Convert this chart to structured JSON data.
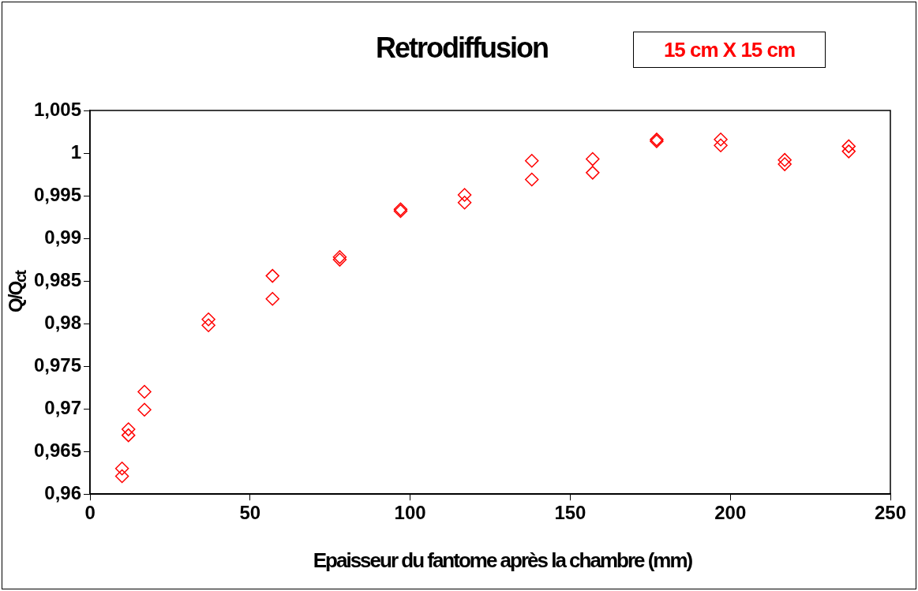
{
  "chart_data": {
    "type": "scatter",
    "title": "Retrodiffusion",
    "xlabel": "Epaisseur du fantome après la chambre (mm)",
    "ylabel": "Q/Q$_{ct}$",
    "annotations": [
      "15 cm X 15 cm"
    ],
    "x": [
      10,
      10,
      12,
      12,
      17,
      17,
      37,
      37,
      57,
      57,
      78,
      78,
      97,
      97,
      117,
      117,
      138,
      138,
      157,
      157,
      177,
      177,
      197,
      197,
      217,
      217,
      237,
      237
    ],
    "series": [
      {
        "color": "#ff0000",
        "values": [
          0.963,
          0.9621,
          0.9676,
          0.9669,
          0.972,
          0.9699,
          0.9805,
          0.9798,
          0.9856,
          0.9829,
          0.9878,
          0.9875,
          0.9934,
          0.9932,
          0.9951,
          0.9942,
          0.9991,
          0.9969,
          0.9993,
          0.9977,
          1.0016,
          1.0014,
          1.0016,
          1.0009,
          0.9992,
          0.9987,
          1.0008,
          1.0002
        ]
      }
    ],
    "xlim": [
      0,
      250
    ],
    "xticks": [
      0,
      50,
      100,
      150,
      200,
      250
    ],
    "ylim": [
      0.96,
      1.005
    ],
    "yticks": [
      {
        "value": 0.96,
        "label": "0,96"
      },
      {
        "value": 0.965,
        "label": "0,965"
      },
      {
        "value": 0.97,
        "label": "0,97"
      },
      {
        "value": 0.975,
        "label": "0,975"
      },
      {
        "value": 0.98,
        "label": "0,98"
      },
      {
        "value": 0.985,
        "label": "0,985"
      },
      {
        "value": 0.99,
        "label": "0,99"
      },
      {
        "value": 0.995,
        "label": "0,995"
      },
      {
        "value": 1,
        "label": "1"
      },
      {
        "value": 1.005,
        "label": "1,005"
      }
    ],
    "grid": false,
    "legend": false,
    "marker": "diamond"
  }
}
